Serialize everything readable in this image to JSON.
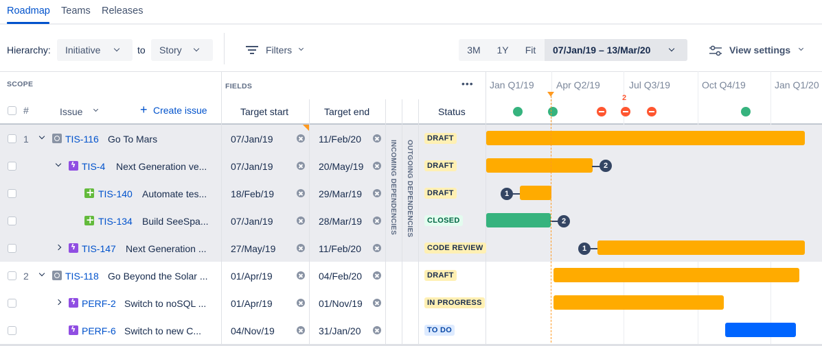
{
  "tabs": [
    {
      "label": "Roadmap"
    },
    {
      "label": "Teams"
    },
    {
      "label": "Releases"
    }
  ],
  "toolbar": {
    "hierarchy_label": "Hierarchy:",
    "from_value": "Initiative",
    "to_label": "to",
    "to_value": "Story",
    "filters_label": "Filters",
    "range_buttons": [
      "3M",
      "1Y",
      "Fit"
    ],
    "date_range": "07/Jan/19 – 13/Mar/20",
    "view_settings": "View settings"
  },
  "headers": {
    "scope": "SCOPE",
    "fields": "FIELDS",
    "more": "•••",
    "hash": "#",
    "issue": "Issue",
    "create_issue": "Create issue",
    "target_start": "Target start",
    "target_end": "Target end",
    "status": "Status",
    "incoming": "INCOMING DEPENDENCIES",
    "outgoing": "OUTGOING DEPENDENCIES"
  },
  "timeline": {
    "quarters": [
      "Jan Q1/19",
      "Apr Q2/19",
      "Jul Q3/19",
      "Oct Q4/19",
      "Jan Q1/20"
    ],
    "marker_count": "2"
  },
  "rows": [
    {
      "num": "1",
      "key": "TIS-116",
      "summary": "Go To Mars",
      "start": "07/Jan/19",
      "end": "11/Feb/20",
      "status": "DRAFT"
    },
    {
      "num": "",
      "key": "TIS-4",
      "summary": "Next Generation ve...",
      "start": "07/Jan/19",
      "end": "20/May/19",
      "status": "DRAFT",
      "dep": "2"
    },
    {
      "num": "",
      "key": "TIS-140",
      "summary": "Automate tes...",
      "start": "18/Feb/19",
      "end": "29/Mar/19",
      "status": "DRAFT",
      "dep": "1"
    },
    {
      "num": "",
      "key": "TIS-134",
      "summary": "Build SeeSpa...",
      "start": "07/Jan/19",
      "end": "28/Mar/19",
      "status": "CLOSED",
      "dep": "2"
    },
    {
      "num": "",
      "key": "TIS-147",
      "summary": "Next Generation ...",
      "start": "27/May/19",
      "end": "11/Feb/20",
      "status": "CODE REVIEW",
      "dep": "1"
    },
    {
      "num": "2",
      "key": "TIS-118",
      "summary": "Go Beyond the Solar ...",
      "start": "01/Apr/19",
      "end": "04/Feb/20",
      "status": "DRAFT"
    },
    {
      "num": "",
      "key": "PERF-2",
      "summary": "Switch to noSQL ...",
      "start": "01/Apr/19",
      "end": "01/Nov/19",
      "status": "IN PROGRESS"
    },
    {
      "num": "",
      "key": "PERF-6",
      "summary": "Switch to new C...",
      "start": "04/Nov/19",
      "end": "31/Jan/20",
      "status": "TO DO"
    }
  ],
  "colors": {
    "accent": "#0052CC",
    "bar_orange": "#FFAB00",
    "bar_green": "#36B37E",
    "bar_blue": "#0065FF",
    "today": "#FF991F"
  }
}
